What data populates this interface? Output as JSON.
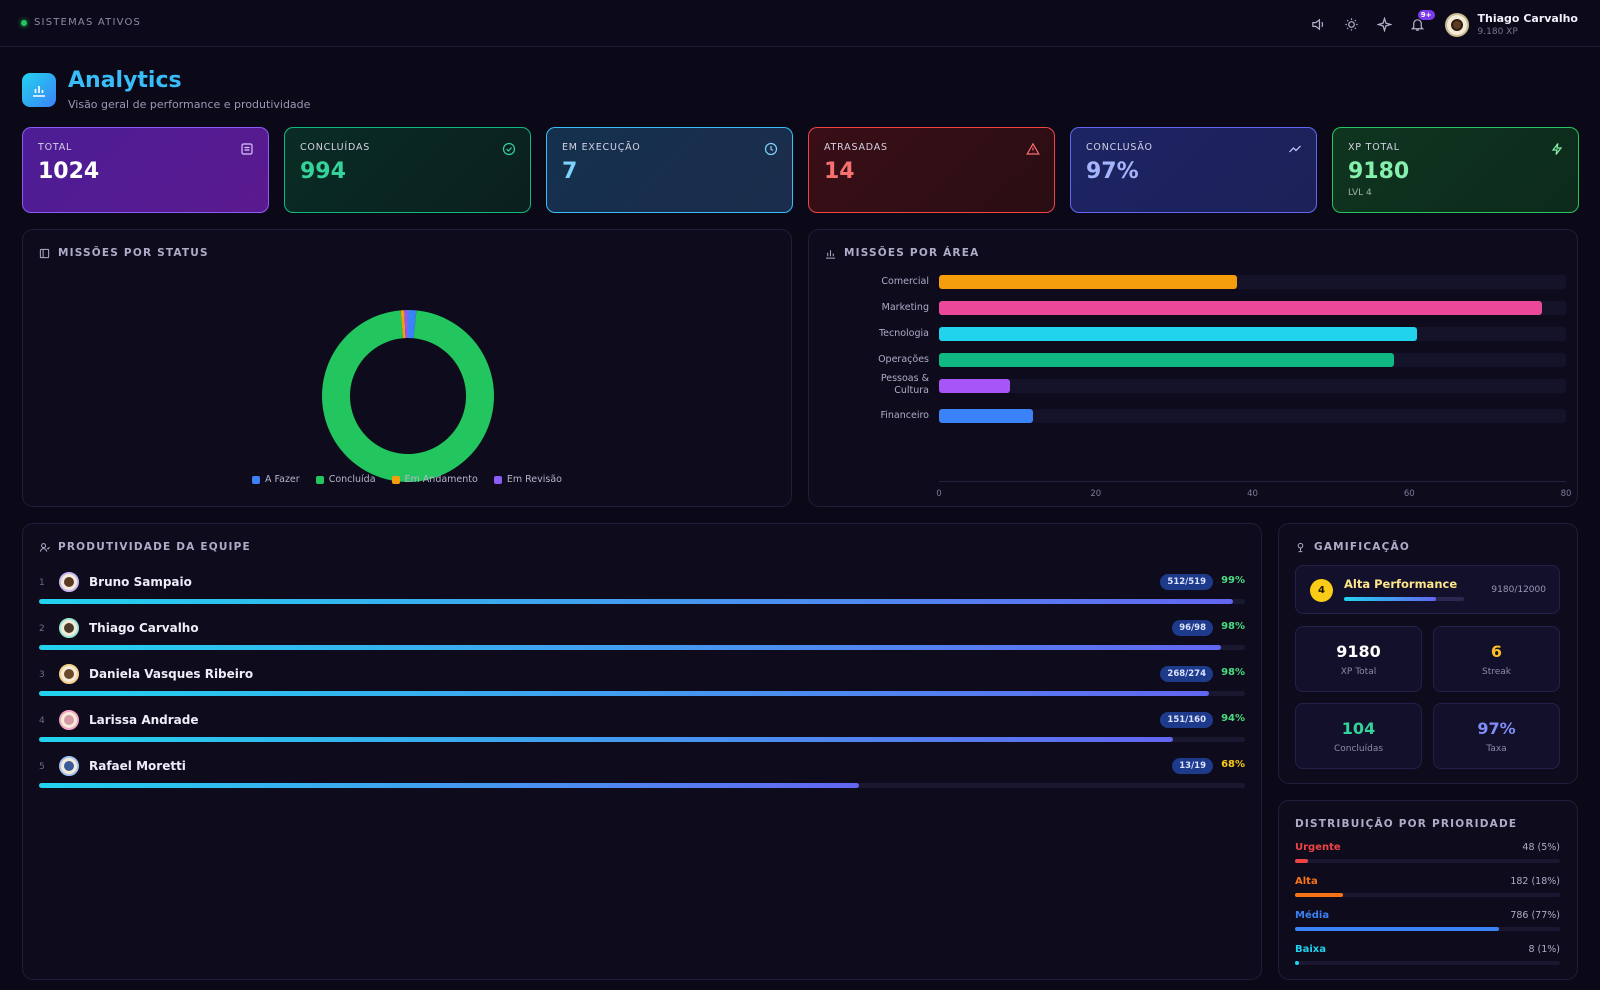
{
  "topbar": {
    "status": "SISTEMAS ATIVOS",
    "notif_badge": "9+",
    "user_name": "Thiago Carvalho",
    "user_xp": "9.180 XP",
    "icons": [
      "volume-icon",
      "sun-icon",
      "sparkle-icon",
      "bell-icon"
    ]
  },
  "header": {
    "title": "Analytics",
    "subtitle": "Visão geral de performance e produtividade",
    "icon": "bar-chart-icon"
  },
  "stats": [
    {
      "label": "TOTAL",
      "value": "1024",
      "icon": "document-icon",
      "color": "#ffffff"
    },
    {
      "label": "CONCLUÍDAS",
      "value": "994",
      "icon": "check-circle-icon",
      "color": "#34d399"
    },
    {
      "label": "EM EXECUÇÃO",
      "value": "7",
      "icon": "clock-icon",
      "color": "#7dd3fc"
    },
    {
      "label": "ATRASADAS",
      "value": "14",
      "icon": "warning-icon",
      "color": "#f87171"
    },
    {
      "label": "CONCLUSÃO",
      "value": "97%",
      "icon": "trend-icon",
      "color": "#a5b4fc"
    },
    {
      "label": "XP TOTAL",
      "value": "9180",
      "sub": "LVL 4",
      "icon": "bolt-icon",
      "color": "#86efac"
    }
  ],
  "status_panel": {
    "title": "MISSÕES POR STATUS"
  },
  "area_panel": {
    "title": "MISSÕES POR ÁREA"
  },
  "chart_data": [
    {
      "type": "pie",
      "title": "MISSÕES POR STATUS",
      "categories": [
        "A Fazer",
        "Concluída",
        "Em Andamento",
        "Em Revisão"
      ],
      "values": [
        16,
        994,
        7,
        7
      ],
      "colors": [
        "#3b82f6",
        "#22c55e",
        "#f59e0b",
        "#8b5cf6"
      ],
      "legend": "bottom"
    },
    {
      "type": "bar",
      "orientation": "horizontal",
      "title": "MISSÕES POR ÁREA",
      "categories": [
        "Comercial",
        "Marketing",
        "Tecnologia",
        "Operações",
        "Pessoas & Cultura",
        "Financeiro"
      ],
      "values": [
        38,
        77,
        61,
        58,
        9,
        12
      ],
      "colors": [
        "#f59e0b",
        "#ec4899",
        "#22d3ee",
        "#10b981",
        "#a855f7",
        "#3b82f6"
      ],
      "xlim": [
        0,
        80
      ],
      "ticks": [
        "0",
        "20",
        "40",
        "60",
        "80"
      ]
    }
  ],
  "team": {
    "title": "PRODUTIVIDADE DA EQUIPE",
    "members": [
      {
        "rank": "1",
        "name": "Bruno Sampaio",
        "ratio": "512/519",
        "pct": "99%",
        "progress": 0.99,
        "pct_color": "#4ade80"
      },
      {
        "rank": "2",
        "name": "Thiago Carvalho",
        "ratio": "96/98",
        "pct": "98%",
        "progress": 0.98,
        "pct_color": "#4ade80"
      },
      {
        "rank": "3",
        "name": "Daniela Vasques Ribeiro",
        "ratio": "268/274",
        "pct": "98%",
        "progress": 0.97,
        "pct_color": "#4ade80"
      },
      {
        "rank": "4",
        "name": "Larissa Andrade",
        "ratio": "151/160",
        "pct": "94%",
        "progress": 0.94,
        "pct_color": "#4ade80"
      },
      {
        "rank": "5",
        "name": "Rafael Moretti",
        "ratio": "13/19",
        "pct": "68%",
        "progress": 0.68,
        "pct_color": "#facc15"
      }
    ]
  },
  "gamification": {
    "title": "GAMIFICAÇÃO",
    "level": "4",
    "level_title": "Alta Performance",
    "xp_progress": "9180/12000",
    "level_fraction": 0.765,
    "tiles": [
      {
        "value": "9180",
        "label": "XP Total",
        "color": "#ffffff"
      },
      {
        "value": "6",
        "label": "Streak",
        "color": "#fbbf24"
      },
      {
        "value": "104",
        "label": "Concluídas",
        "color": "#34d399"
      },
      {
        "value": "97%",
        "label": "Taxa",
        "color": "#818cf8"
      }
    ]
  },
  "priority": {
    "title": "DISTRIBUIÇÃO POR PRIORIDADE",
    "items": [
      {
        "label": "Urgente",
        "value": "48 (5%)",
        "fraction": 0.05,
        "color": "#ef4444"
      },
      {
        "label": "Alta",
        "value": "182 (18%)",
        "fraction": 0.18,
        "color": "#f97316"
      },
      {
        "label": "Média",
        "value": "786 (77%)",
        "fraction": 0.77,
        "color": "#3b82f6"
      },
      {
        "label": "Baixa",
        "value": "8 (1%)",
        "fraction": 0.01,
        "color": "#22d3ee"
      }
    ]
  }
}
